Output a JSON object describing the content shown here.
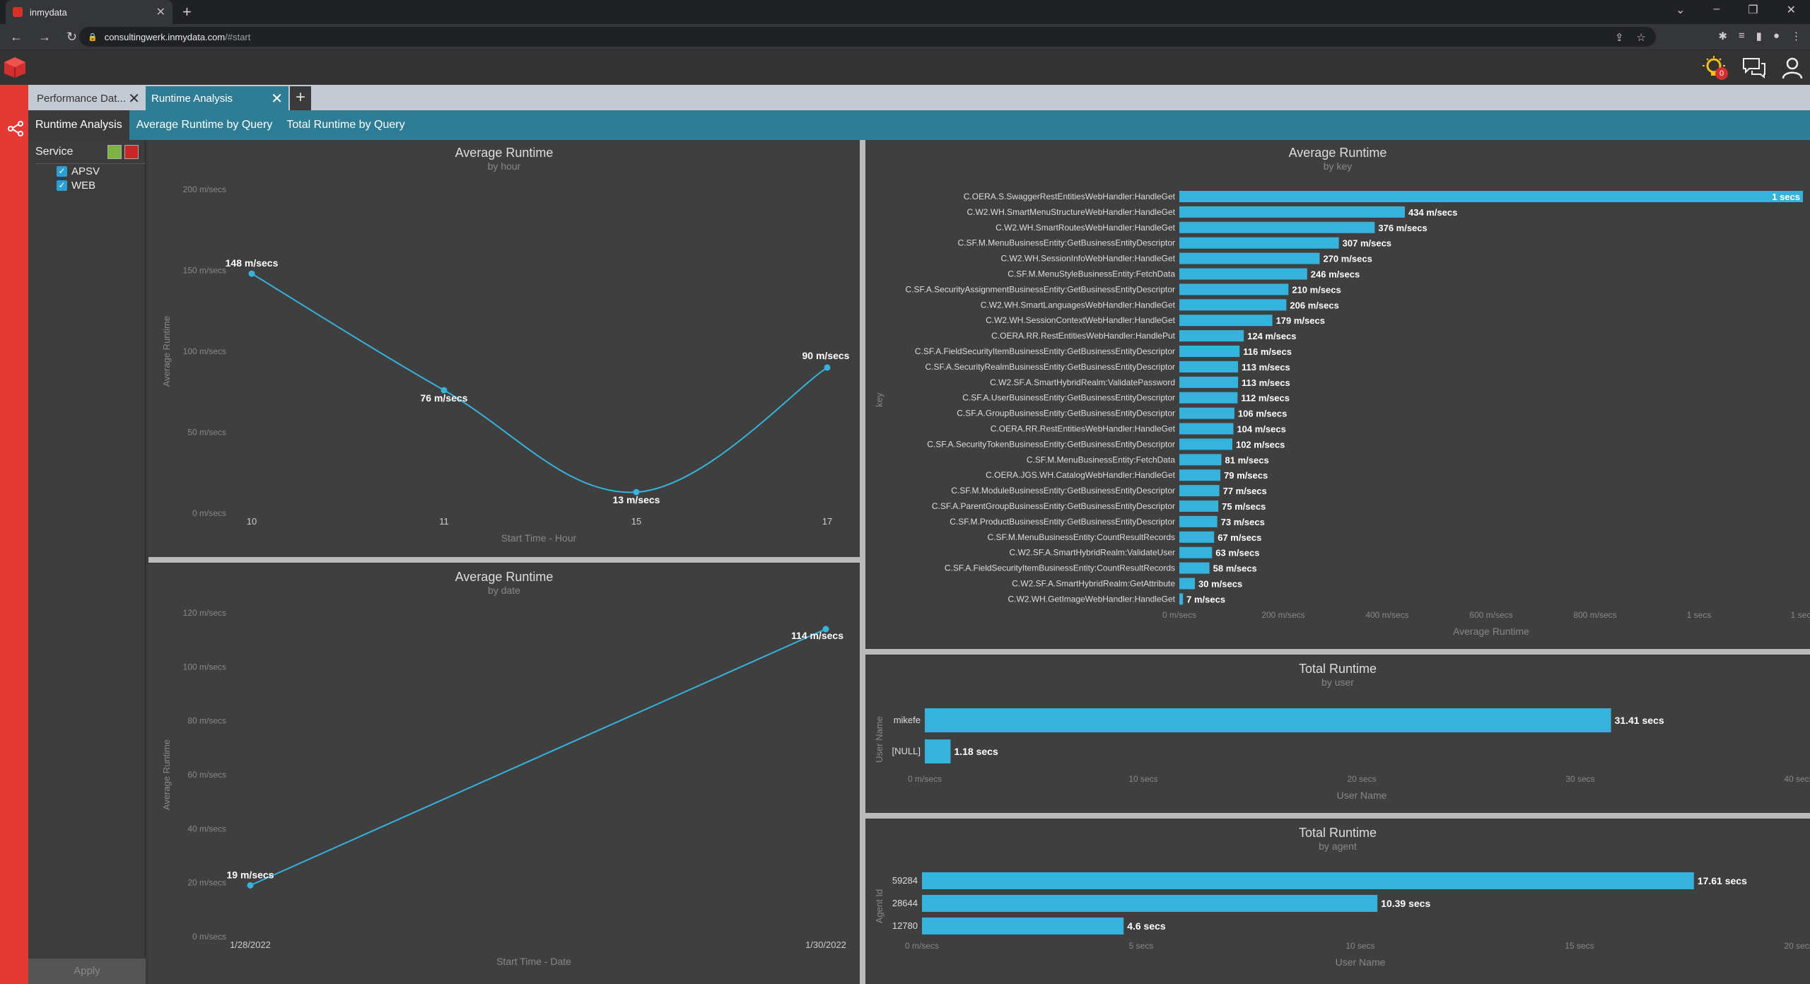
{
  "browser": {
    "tab_title": "inmydata",
    "url_host": "consultingwerk.inmydata.com",
    "url_path": "/#start"
  },
  "app": {
    "notification_count": "0",
    "colors": {
      "rail": "#e53935",
      "accent": "#2e7d95",
      "bar": "#35b3dc"
    }
  },
  "doc_tabs": [
    {
      "label": "Performance Dat..."
    },
    {
      "label": "Runtime Analysis"
    }
  ],
  "subnav": [
    "Runtime Analysis",
    "Average Runtime by Query",
    "Total Runtime by Query"
  ],
  "filter": {
    "title": "Service",
    "items": [
      "APSV",
      "WEB"
    ],
    "apply_label": "Apply"
  },
  "charts": {
    "hour": {
      "title": "Average Runtime",
      "subtitle": "by hour",
      "ylabel": "Average Runtime",
      "xlabel": "Start Time - Hour",
      "yticks": [
        "0 m/secs",
        "50 m/secs",
        "100 m/secs",
        "150 m/secs",
        "200 m/secs"
      ],
      "xticks": [
        "10",
        "11",
        "15",
        "17"
      ],
      "labels": [
        "148 m/secs",
        "76 m/secs",
        "13 m/secs",
        "90 m/secs"
      ]
    },
    "date": {
      "title": "Average Runtime",
      "subtitle": "by date",
      "ylabel": "Average Runtime",
      "xlabel": "Start Time - Date",
      "yticks": [
        "0 m/secs",
        "20 m/secs",
        "40 m/secs",
        "60 m/secs",
        "80 m/secs",
        "100 m/secs",
        "120 m/secs"
      ],
      "xticks": [
        "1/28/2022",
        "1/30/2022"
      ],
      "labels": [
        "19 m/secs",
        "114 m/secs"
      ]
    },
    "key": {
      "title": "Average Runtime",
      "subtitle": "by key",
      "ylabel": "key",
      "xlabel": "Average Runtime",
      "xticks": [
        "0 m/secs",
        "200 m/secs",
        "400 m/secs",
        "600 m/secs",
        "800 m/secs",
        "1 secs",
        "1 secs"
      ],
      "keys": [
        "C.OERA.S.SwaggerRestEntitiesWebHandler:HandleGet",
        "C.W2.WH.SmartMenuStructureWebHandler:HandleGet",
        "C.W2.WH.SmartRoutesWebHandler:HandleGet",
        "C.SF.M.MenuBusinessEntity:GetBusinessEntityDescriptor",
        "C.W2.WH.SessionInfoWebHandler:HandleGet",
        "C.SF.M.MenuStyleBusinessEntity:FetchData",
        "C.SF.A.SecurityAssignmentBusinessEntity:GetBusinessEntityDescriptor",
        "C.W2.WH.SmartLanguagesWebHandler:HandleGet",
        "C.W2.WH.SessionContextWebHandler:HandleGet",
        "C.OERA.RR.RestEntitiesWebHandler:HandlePut",
        "C.SF.A.FieldSecurityItemBusinessEntity:GetBusinessEntityDescriptor",
        "C.SF.A.SecurityRealmBusinessEntity:GetBusinessEntityDescriptor",
        "C.W2.SF.A.SmartHybridRealm:ValidatePassword",
        "C.SF.A.UserBusinessEntity:GetBusinessEntityDescriptor",
        "C.SF.A.GroupBusinessEntity:GetBusinessEntityDescriptor",
        "C.OERA.RR.RestEntitiesWebHandler:HandleGet",
        "C.SF.A.SecurityTokenBusinessEntity:GetBusinessEntityDescriptor",
        "C.SF.M.MenuBusinessEntity:FetchData",
        "C.OERA.JGS.WH.CatalogWebHandler:HandleGet",
        "C.SF.M.ModuleBusinessEntity:GetBusinessEntityDescriptor",
        "C.SF.A.ParentGroupBusinessEntity:GetBusinessEntityDescriptor",
        "C.SF.M.ProductBusinessEntity:GetBusinessEntityDescriptor",
        "C.SF.M.MenuBusinessEntity:CountResultRecords",
        "C.W2.SF.A.SmartHybridRealm:ValidateUser",
        "C.SF.A.FieldSecurityItemBusinessEntity:CountResultRecords",
        "C.W2.SF.A.SmartHybridRealm:GetAttribute",
        "C.W2.WH.GetImageWebHandler:HandleGet"
      ],
      "value_labels": [
        "1 secs",
        "434 m/secs",
        "376 m/secs",
        "307 m/secs",
        "270 m/secs",
        "246 m/secs",
        "210 m/secs",
        "206 m/secs",
        "179 m/secs",
        "124 m/secs",
        "116 m/secs",
        "113 m/secs",
        "113 m/secs",
        "112 m/secs",
        "106 m/secs",
        "104 m/secs",
        "102 m/secs",
        "81 m/secs",
        "79 m/secs",
        "77 m/secs",
        "75 m/secs",
        "73 m/secs",
        "67 m/secs",
        "63 m/secs",
        "58 m/secs",
        "30 m/secs",
        "7 m/secs"
      ]
    },
    "user": {
      "title": "Total Runtime",
      "subtitle": "by user",
      "ylabel": "User Name",
      "xlabel": "User Name",
      "xticks": [
        "0 m/secs",
        "10 secs",
        "20 secs",
        "30 secs",
        "40 secs"
      ],
      "cats": [
        "mikefe",
        "[NULL]"
      ],
      "value_labels": [
        "31.41 secs",
        "1.18 secs"
      ]
    },
    "agent": {
      "title": "Total Runtime",
      "subtitle": "by agent",
      "ylabel": "Agent Id",
      "xlabel": "User Name",
      "xticks": [
        "0 m/secs",
        "5 secs",
        "10 secs",
        "15 secs",
        "20 secs"
      ],
      "cats": [
        "59284",
        "28644",
        "12780"
      ],
      "value_labels": [
        "17.61 secs",
        "10.39 secs",
        "4.6 secs"
      ]
    }
  },
  "chart_data": [
    {
      "type": "line",
      "title": "Average Runtime",
      "subtitle": "by hour",
      "xlabel": "Start Time - Hour",
      "ylabel": "Average Runtime",
      "ylim": [
        0,
        200
      ],
      "x": [
        "10",
        "11",
        "15",
        "17"
      ],
      "values": [
        148,
        76,
        13,
        90
      ],
      "unit": "m/secs"
    },
    {
      "type": "line",
      "title": "Average Runtime",
      "subtitle": "by date",
      "xlabel": "Start Time - Date",
      "ylabel": "Average Runtime",
      "ylim": [
        0,
        120
      ],
      "x": [
        "1/28/2022",
        "1/30/2022"
      ],
      "values": [
        19,
        114
      ],
      "unit": "m/secs"
    },
    {
      "type": "bar",
      "orientation": "horizontal",
      "title": "Average Runtime",
      "subtitle": "by key",
      "xlabel": "Average Runtime",
      "ylabel": "key",
      "xlim": [
        0,
        1200
      ],
      "values": [
        1200,
        434,
        376,
        307,
        270,
        246,
        210,
        206,
        179,
        124,
        116,
        113,
        113,
        112,
        106,
        104,
        102,
        81,
        79,
        77,
        75,
        73,
        67,
        63,
        58,
        30,
        7
      ],
      "unit": "m/secs"
    },
    {
      "type": "bar",
      "orientation": "horizontal",
      "title": "Total Runtime",
      "subtitle": "by user",
      "xlabel": "User Name",
      "ylabel": "User Name",
      "xlim": [
        0,
        40
      ],
      "categories": [
        "mikefe",
        "[NULL]"
      ],
      "values": [
        31.41,
        1.18
      ],
      "unit": "secs"
    },
    {
      "type": "bar",
      "orientation": "horizontal",
      "title": "Total Runtime",
      "subtitle": "by agent",
      "xlabel": "User Name",
      "ylabel": "Agent Id",
      "xlim": [
        0,
        20
      ],
      "categories": [
        "59284",
        "28644",
        "12780"
      ],
      "values": [
        17.61,
        10.39,
        4.6
      ],
      "unit": "secs"
    }
  ]
}
